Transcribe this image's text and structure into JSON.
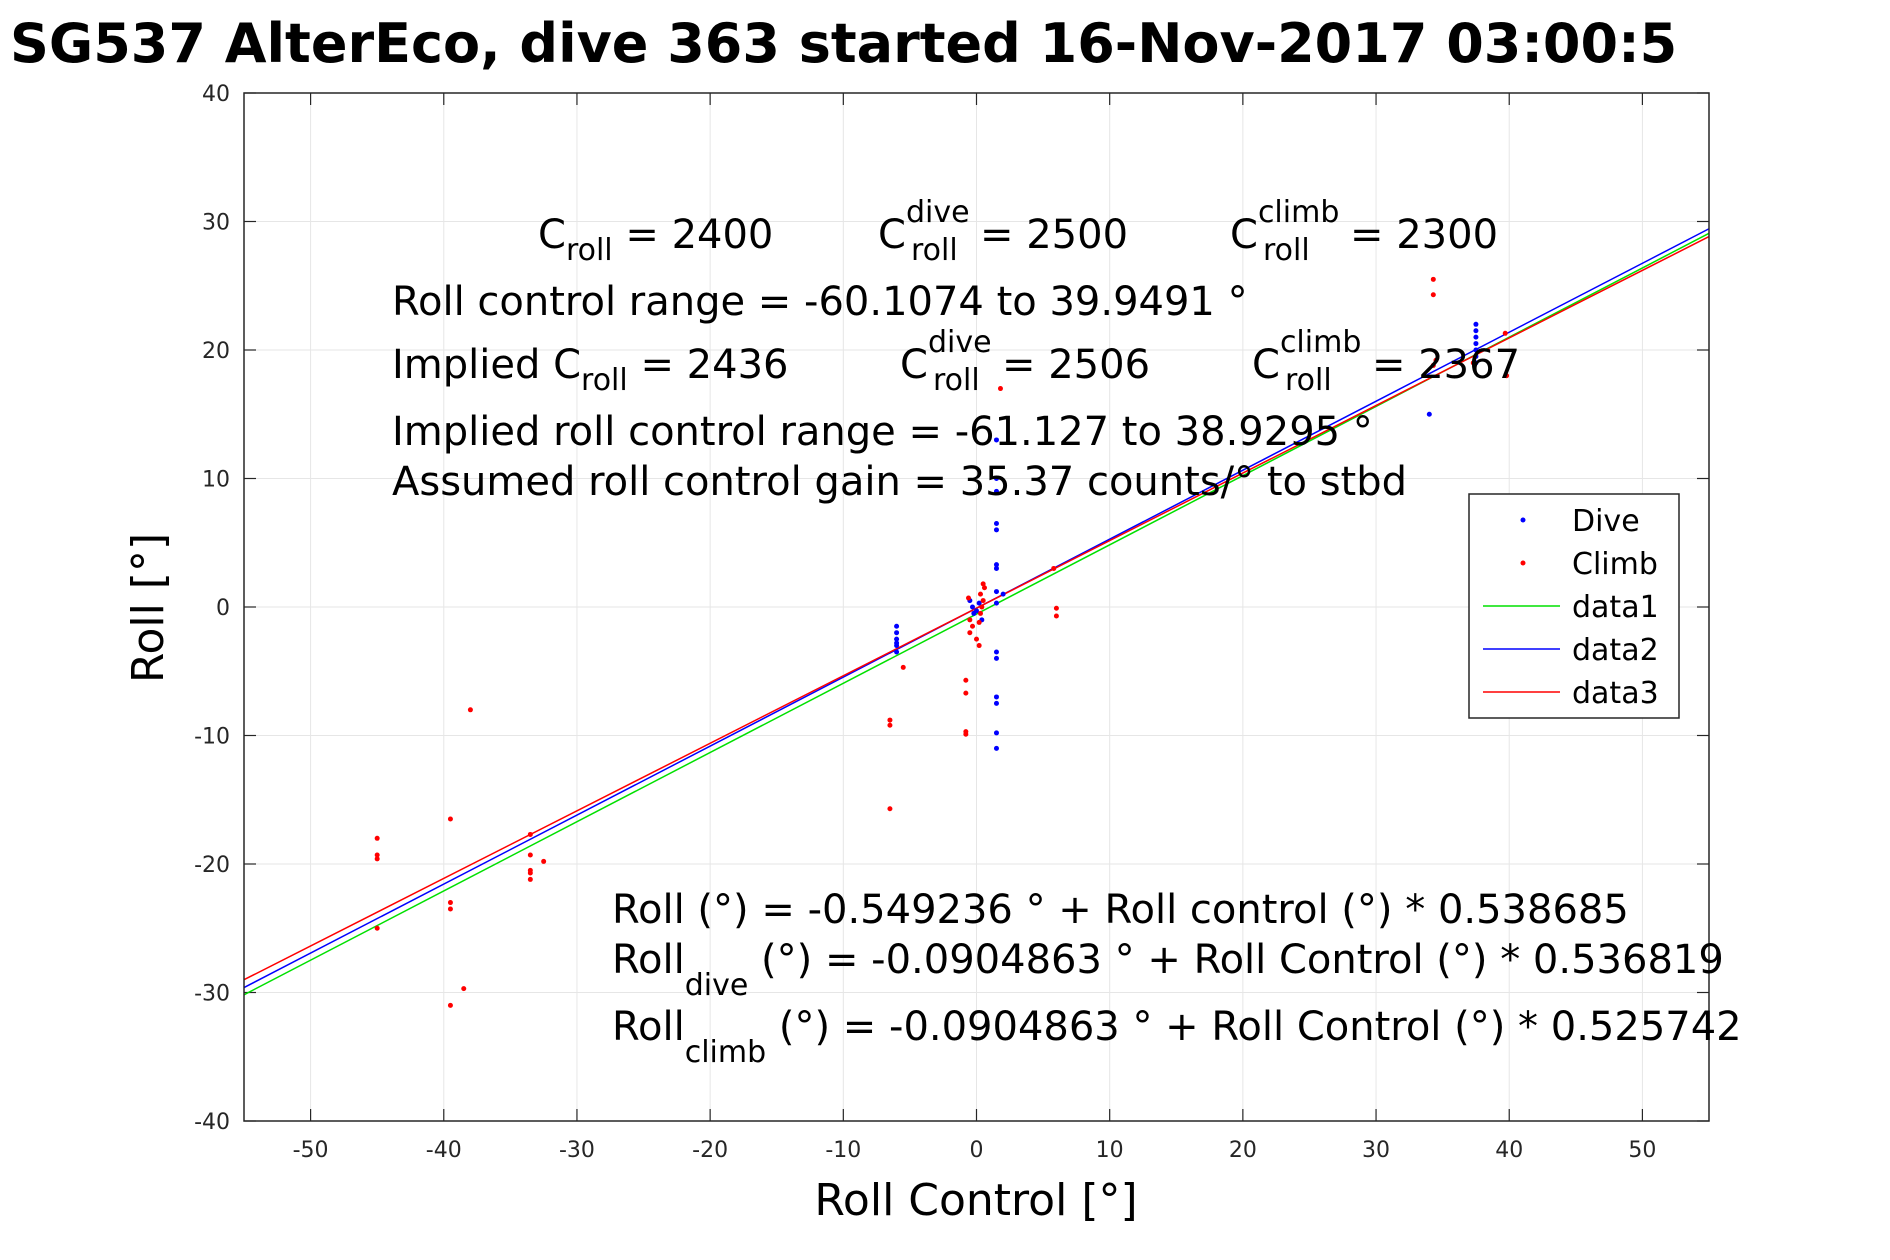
{
  "title": "SG537 AlterEco, dive 363 started 16-Nov-2017 03:00:5",
  "chart_data": {
    "type": "scatter",
    "xlabel": "Roll Control [°]",
    "ylabel": "Roll [°]",
    "xlim": [
      -55,
      55
    ],
    "ylim": [
      -40,
      40
    ],
    "xticks": [
      -50,
      -40,
      -30,
      -20,
      -10,
      0,
      10,
      20,
      30,
      40,
      50
    ],
    "yticks": [
      -40,
      -30,
      -20,
      -10,
      0,
      10,
      20,
      30,
      40
    ],
    "grid": true,
    "legend_position": "right",
    "series": [
      {
        "name": "Dive",
        "kind": "points",
        "color": "#0000ff",
        "points": [
          [
            -6,
            -1.5
          ],
          [
            -6,
            -2
          ],
          [
            -6,
            -2.5
          ],
          [
            -6,
            -3
          ],
          [
            -6,
            -3.5
          ],
          [
            -6,
            -2.8
          ],
          [
            -0.5,
            0.5
          ],
          [
            -0.3,
            0
          ],
          [
            0,
            -0.3
          ],
          [
            0.2,
            0.3
          ],
          [
            -0.2,
            -0.5
          ],
          [
            0.4,
            -1
          ],
          [
            1.5,
            13
          ],
          [
            1.5,
            10
          ],
          [
            1.5,
            9
          ],
          [
            1.5,
            6.5
          ],
          [
            1.5,
            6
          ],
          [
            1.5,
            3.3
          ],
          [
            1.5,
            3
          ],
          [
            1.5,
            1.2
          ],
          [
            1.5,
            0.3
          ],
          [
            1.5,
            -3.5
          ],
          [
            1.5,
            -4
          ],
          [
            1.5,
            -7
          ],
          [
            1.5,
            -7.5
          ],
          [
            1.5,
            -9.8
          ],
          [
            1.5,
            -11
          ],
          [
            2,
            1
          ],
          [
            34,
            15
          ],
          [
            37.5,
            22
          ],
          [
            37.5,
            21.5
          ],
          [
            37.5,
            21
          ],
          [
            37.5,
            20.5
          ],
          [
            37.5,
            20
          ],
          [
            37.5,
            19.5
          ],
          [
            37.5,
            19
          ]
        ]
      },
      {
        "name": "Climb",
        "kind": "points",
        "color": "#ff0000",
        "points": [
          [
            -45,
            -18
          ],
          [
            -45,
            -19.3
          ],
          [
            -45,
            -19.6
          ],
          [
            -45,
            -25
          ],
          [
            -39.5,
            -16.5
          ],
          [
            -39.5,
            -23
          ],
          [
            -39.5,
            -23.5
          ],
          [
            -39.5,
            -31
          ],
          [
            -38.5,
            -29.7
          ],
          [
            -38,
            -8
          ],
          [
            -33.5,
            -17.7
          ],
          [
            -33.5,
            -19.3
          ],
          [
            -33.5,
            -20.5
          ],
          [
            -33.5,
            -20.7
          ],
          [
            -33.5,
            -21.2
          ],
          [
            -32.5,
            -19.8
          ],
          [
            -6.5,
            -8.8
          ],
          [
            -6.5,
            -9.2
          ],
          [
            -6.5,
            -15.7
          ],
          [
            -5.5,
            -4.7
          ],
          [
            -0.8,
            -5.7
          ],
          [
            -0.8,
            -6.7
          ],
          [
            -0.8,
            -9.7
          ],
          [
            -0.8,
            -9.9
          ],
          [
            -0.5,
            -1
          ],
          [
            -0.3,
            -1.5
          ],
          [
            -0.5,
            -2
          ],
          [
            0,
            -2.5
          ],
          [
            0.2,
            -3
          ],
          [
            0.3,
            -0.5
          ],
          [
            0.4,
            0
          ],
          [
            0.5,
            0.5
          ],
          [
            0.3,
            1
          ],
          [
            0.6,
            1.5
          ],
          [
            0.5,
            1.8
          ],
          [
            0.2,
            -1.2
          ],
          [
            -0.6,
            0.7
          ],
          [
            1.8,
            17
          ],
          [
            5.8,
            3
          ],
          [
            6,
            -0.1
          ],
          [
            6,
            -0.7
          ],
          [
            34.3,
            25.5
          ],
          [
            34.3,
            24.3
          ],
          [
            34.5,
            19.2
          ],
          [
            34.3,
            18.8
          ],
          [
            37.3,
            19
          ],
          [
            39.7,
            21.3
          ],
          [
            39.8,
            18
          ]
        ]
      },
      {
        "name": "data1",
        "kind": "line",
        "color": "#00e000",
        "intercept": -0.549236,
        "slope": 0.538685
      },
      {
        "name": "data2",
        "kind": "line",
        "color": "#0000ff",
        "intercept": -0.0904863,
        "slope": 0.536819
      },
      {
        "name": "data3",
        "kind": "line",
        "color": "#ff0000",
        "intercept": -0.0904863,
        "slope": 0.525742
      }
    ],
    "annotations": {
      "c_roll_label": "C",
      "c_roll_sub": "roll",
      "c_roll_value": " = 2400",
      "c_dive_sup": "dive",
      "c_dive_value": " = 2500",
      "c_climb_sup": "climb",
      "c_climb_value": " = 2300",
      "range": "Roll control range = -60.1074 to 39.9491 °",
      "implied_prefix": "Implied C",
      "implied_roll_value": " = 2436",
      "implied_dive_value": " = 2506",
      "implied_climb_value": " = 2367",
      "implied_range": "Implied roll control range = -61.127 to 38.9295 °",
      "gain": "Assumed roll control gain = 35.37 counts/° to stbd",
      "eq1": "Roll (°) = -0.549236 ° + Roll control (°) * 0.538685",
      "eq2_prefix": "Roll",
      "eq2_sub": "dive",
      "eq2_rest": " (°) = -0.0904863 ° + Roll Control (°) * 0.536819",
      "eq3_prefix": "Roll",
      "eq3_sub": "climb",
      "eq3_rest": " (°) = -0.0904863 ° + Roll Control (°) * 0.525742"
    }
  }
}
